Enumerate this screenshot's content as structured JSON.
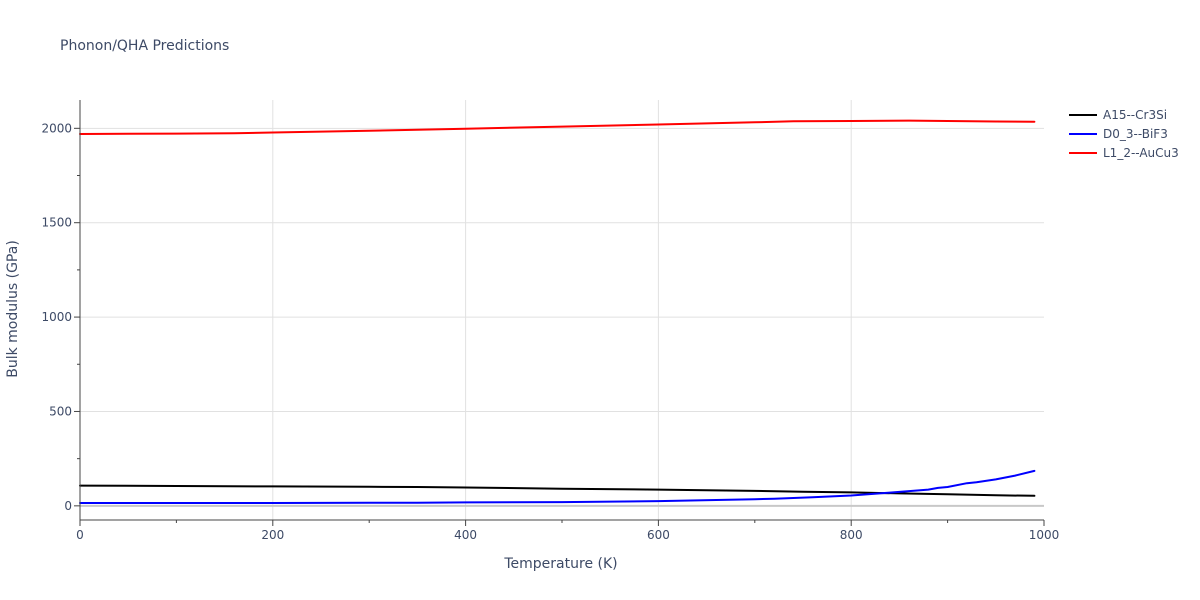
{
  "chart_data": {
    "type": "line",
    "title": "Phonon/QHA Predictions",
    "xlabel": "Temperature (K)",
    "ylabel": "Bulk modulus (GPa)",
    "xlim": [
      0,
      1000
    ],
    "ylim": [
      -75,
      2150
    ],
    "x_ticks": [
      0,
      200,
      400,
      600,
      800,
      1000
    ],
    "y_ticks": [
      0,
      500,
      1000,
      1500,
      2000
    ],
    "grid": true,
    "legend_position": "top-right",
    "series": [
      {
        "name": "A15--Cr3Si",
        "color": "#000000",
        "x": [
          0,
          100,
          200,
          300,
          350,
          400,
          500,
          600,
          650,
          700,
          750,
          800,
          850,
          900,
          950,
          990
        ],
        "y": [
          107,
          105,
          103,
          101,
          100,
          97,
          91,
          86,
          83,
          79,
          75,
          71,
          66,
          61,
          56,
          53
        ]
      },
      {
        "name": "D0_3--BiF3",
        "color": "#0000ff",
        "x": [
          0,
          100,
          200,
          300,
          350,
          400,
          500,
          600,
          640,
          700,
          720,
          760,
          800,
          840,
          880,
          890,
          900,
          920,
          930,
          950,
          970,
          990
        ],
        "y": [
          15,
          15,
          15,
          16,
          16,
          18,
          20,
          25,
          29,
          35,
          38,
          45,
          55,
          70,
          86,
          95,
          100,
          120,
          125,
          140,
          160,
          185
        ]
      },
      {
        "name": "L1_2--AuCu3",
        "color": "#ff0000",
        "x": [
          0,
          100,
          160,
          200,
          300,
          400,
          500,
          600,
          700,
          740,
          800,
          860,
          900,
          950,
          990
        ],
        "y": [
          1970,
          1972,
          1974,
          1978,
          1987,
          1998,
          2009,
          2020,
          2032,
          2037,
          2039,
          2041,
          2039,
          2036,
          2035
        ]
      }
    ]
  }
}
